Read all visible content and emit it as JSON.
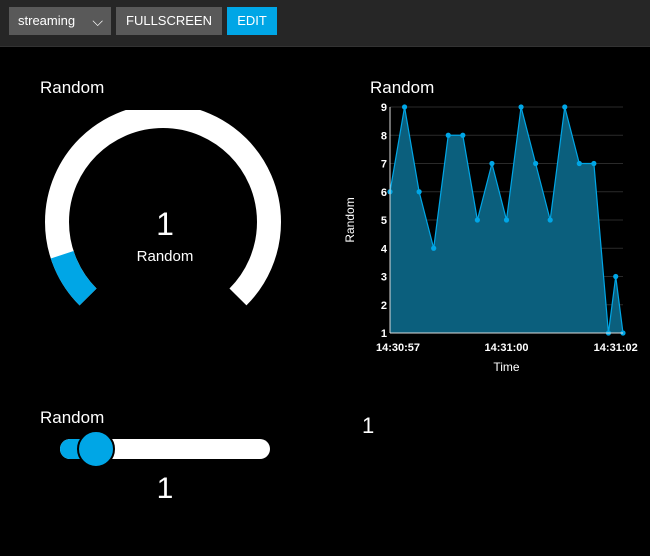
{
  "toolbar": {
    "select_value": "streaming",
    "fullscreen_label": "FULLSCREEN",
    "edit_label": "EDIT"
  },
  "gauge": {
    "title": "Random",
    "value": "1",
    "label": "Random",
    "min": 0,
    "max": 10,
    "level": 1,
    "color_track": "#ffffff",
    "color_fill": "#00a6e6"
  },
  "slider": {
    "title": "Random",
    "value": "1",
    "level": 1,
    "min": 0,
    "max": 10
  },
  "text_widget": {
    "value": "1"
  },
  "chart_panel": {
    "title": "Random"
  },
  "chart_data": {
    "type": "area",
    "title": "Random",
    "xlabel": "Time",
    "ylabel": "Random",
    "ylim": [
      1,
      9
    ],
    "yticks": [
      "1",
      "2",
      "3",
      "4",
      "5",
      "6",
      "7",
      "8",
      "9"
    ],
    "xtick_labels": [
      "14:30:57",
      "14:31:00",
      "14:31:02"
    ],
    "xtick_positions": [
      0,
      8,
      15.5
    ],
    "xlim": [
      0,
      15.5
    ],
    "x": [
      0,
      1,
      2,
      3,
      4,
      5,
      6,
      7,
      8,
      9,
      10,
      11,
      12,
      13,
      14,
      15,
      15.5,
      16
    ],
    "series": [
      {
        "values": [
          6,
          9,
          6,
          4,
          8,
          8,
          5,
          7,
          5,
          9,
          7,
          5,
          9,
          7,
          7,
          1,
          3,
          1
        ],
        "color": "#00a6e6",
        "fill": "#0b5f7d"
      }
    ],
    "grid": true
  }
}
